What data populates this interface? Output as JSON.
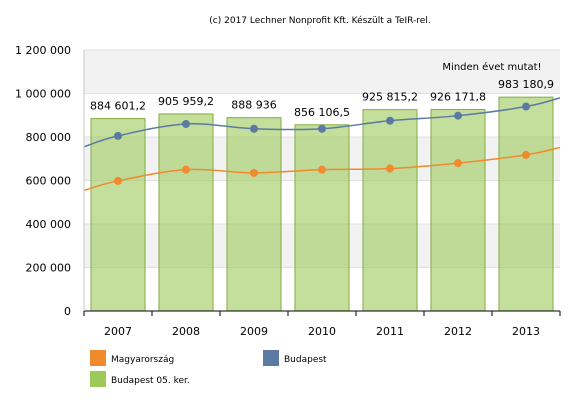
{
  "credit": "(c) 2017 Lechner Nonprofit Kft. Készült a TeIR-rel.",
  "note": "Minden évet mutat!",
  "chart_data": {
    "type": "bar",
    "categories": [
      "2007",
      "2008",
      "2009",
      "2010",
      "2011",
      "2012",
      "2013"
    ],
    "ylim": [
      0,
      1200000
    ],
    "y_ticks": [
      0,
      200000,
      400000,
      600000,
      800000,
      1000000,
      1200000
    ],
    "y_tick_labels": [
      "0",
      "200 000",
      "400 000",
      "600 000",
      "800 000",
      "1 000 000",
      "1 200 000"
    ],
    "grid": true,
    "series": [
      {
        "name": "Budapest 05. ker.",
        "kind": "bar",
        "color": "#9dc85a",
        "values": [
          884601.2,
          905959.2,
          888936,
          856106.5,
          925815.2,
          926171.8,
          983180.9
        ],
        "labels": [
          "884 601,2",
          "905 959,2",
          "888 936",
          "856 106,5",
          "925 815,2",
          "926 171,8",
          "983 180,9"
        ]
      },
      {
        "name": "Budapest",
        "kind": "line",
        "color": "#5b7ba3",
        "values": [
          805000,
          860000,
          838000,
          838000,
          875000,
          898000,
          940000
        ],
        "left_edge_value": 755000,
        "right_edge_value": 980000
      },
      {
        "name": "Magyarország",
        "kind": "line",
        "color": "#f08a2c",
        "values": [
          598000,
          650000,
          635000,
          650000,
          655000,
          680000,
          718000
        ],
        "left_edge_value": 555000,
        "right_edge_value": 752000
      }
    ],
    "legend": [
      {
        "name": "Magyarország",
        "color": "#f08a2c"
      },
      {
        "name": "Budapest",
        "color": "#5b7ba3"
      },
      {
        "name": "Budapest 05. ker.",
        "color": "#9dc85a"
      }
    ],
    "legend_position": "bottom"
  }
}
